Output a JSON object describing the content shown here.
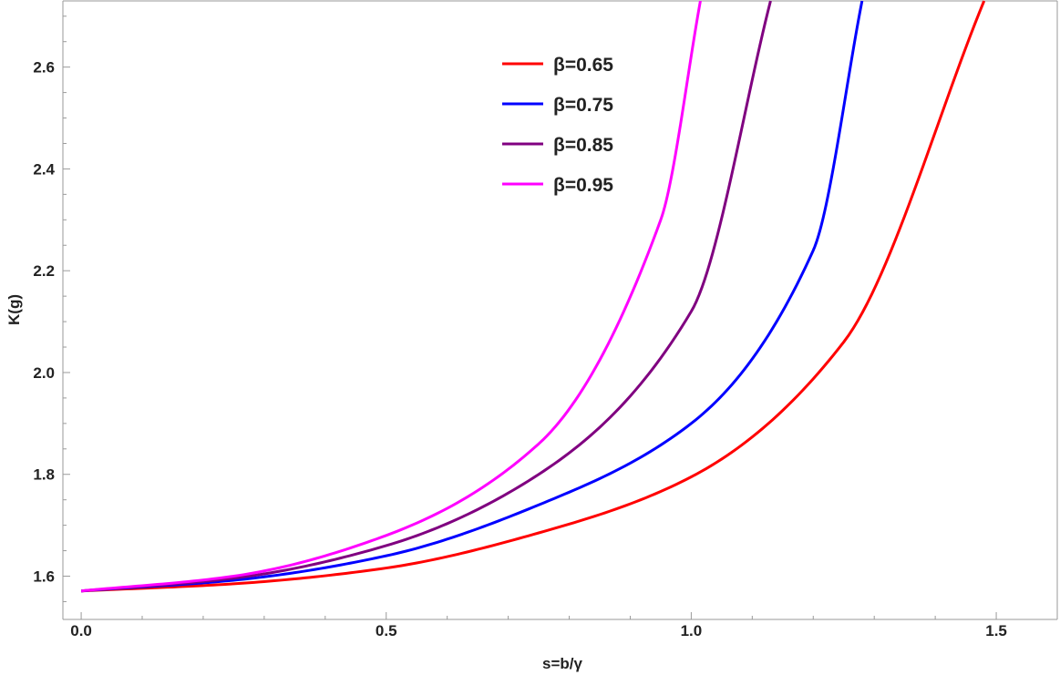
{
  "chart_data": {
    "type": "line",
    "xlabel": "s=b/γ",
    "ylabel": "K(g)",
    "xlim": [
      -0.03,
      1.6
    ],
    "ylim": [
      1.515,
      2.73
    ],
    "xticks": [
      "0.0",
      "0.5",
      "1.0",
      "1.5"
    ],
    "xtick_values": [
      0,
      0.5,
      1.0,
      1.5
    ],
    "yticks": [
      "1.6",
      "1.8",
      "2.0",
      "2.2",
      "2.4",
      "2.6"
    ],
    "ytick_values": [
      1.6,
      1.8,
      2.0,
      2.2,
      2.4,
      2.6
    ],
    "grid": false,
    "legend_position": "top-center",
    "series": [
      {
        "name": "β=0.65",
        "beta": 0.65,
        "color": "#ff0000",
        "x": [
          0,
          0.25,
          0.5,
          0.75,
          1.0,
          1.25,
          1.48
        ],
        "y": [
          1.571,
          1.585,
          1.616,
          1.685,
          1.795,
          2.06,
          2.73
        ]
      },
      {
        "name": "β=0.75",
        "beta": 0.75,
        "color": "#0000ff",
        "x": [
          0,
          0.25,
          0.5,
          0.75,
          1.0,
          1.2,
          1.28
        ],
        "y": [
          1.571,
          1.592,
          1.64,
          1.74,
          1.9,
          2.24,
          2.73
        ]
      },
      {
        "name": "β=0.85",
        "beta": 0.85,
        "color": "#800080",
        "x": [
          0,
          0.25,
          0.5,
          0.75,
          1.0,
          1.13
        ],
        "y": [
          1.571,
          1.596,
          1.66,
          1.8,
          2.12,
          2.73
        ]
      },
      {
        "name": "β=0.95",
        "beta": 0.95,
        "color": "#ff00ff",
        "x": [
          0,
          0.25,
          0.5,
          0.75,
          0.95,
          1.015
        ],
        "y": [
          1.571,
          1.6,
          1.68,
          1.86,
          2.3,
          2.73
        ]
      }
    ]
  }
}
